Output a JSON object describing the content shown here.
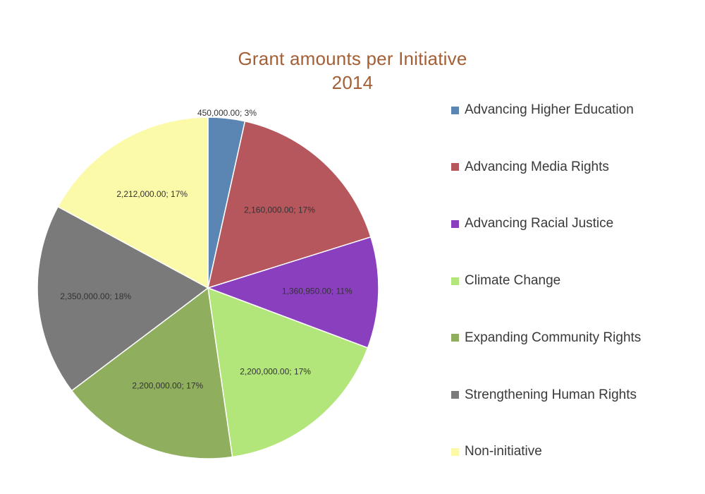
{
  "chart_data": {
    "type": "pie",
    "title": [
      "Grant amounts per Initiative",
      "2014"
    ],
    "legend_position": "right",
    "categories": [
      "Advancing Higher Education",
      "Advancing Media Rights",
      "Advancing Racial Justice",
      "Climate Change",
      "Expanding Community Rights",
      "Strengthening Human Rights",
      "Non-initiative"
    ],
    "values": [
      450000,
      2160000,
      1360950,
      2200000,
      2200000,
      2350000,
      2212000
    ],
    "percents": [
      3,
      17,
      11,
      17,
      17,
      18,
      17
    ],
    "data_labels": [
      "450,000.00; 3%",
      "2,160,000.00; 17%",
      "1,360,950.00; 11%",
      "2,200,000.00; 17%",
      "2,200,000.00; 17%",
      "2,350,000.00; 18%",
      "2,212,000.00; 17%"
    ],
    "colors": [
      "#5b86b4",
      "#b5575c",
      "#8a3fbf",
      "#b3e67a",
      "#8fae5e",
      "#7a7a7a",
      "#fbfaa9"
    ],
    "start_angle_deg": 0,
    "direction": "clockwise"
  }
}
